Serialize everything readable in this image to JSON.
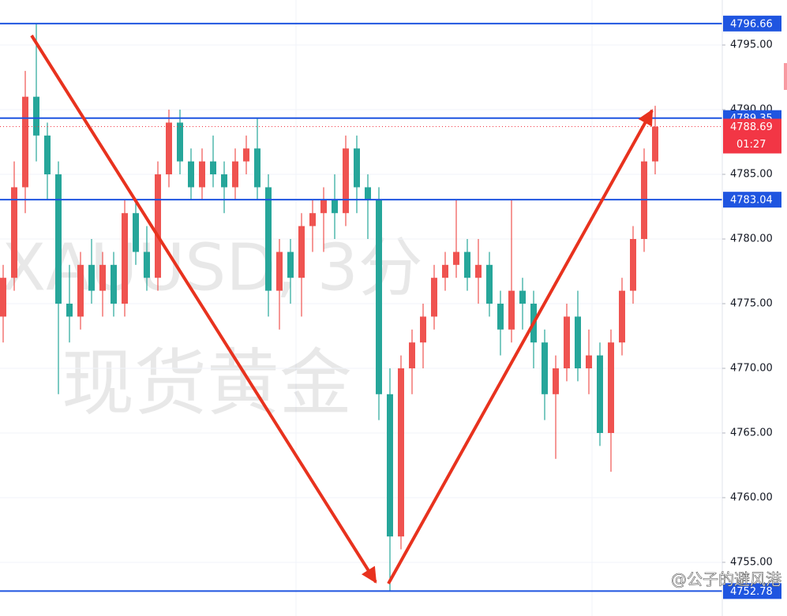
{
  "chart_data": {
    "type": "candlestick",
    "title": "XAUUSD, 3分",
    "subtitle": "现货黄金",
    "watermark": "@公子的避风港",
    "open": [
      4774,
      4777,
      4784,
      4791,
      4788,
      4785,
      4775,
      4774,
      4778,
      4776,
      4778,
      4775,
      4782,
      4779,
      4777,
      4785,
      4789,
      4786,
      4784,
      4786,
      4785,
      4784,
      4786,
      4787,
      4784,
      4776,
      4779,
      4777,
      4781,
      4782,
      4783,
      4782,
      4787,
      4784,
      4783,
      4768,
      4757,
      4770,
      4772,
      4774,
      4777,
      4778,
      4779,
      4777,
      4778,
      4775,
      4773,
      4776,
      4775,
      4772,
      4768,
      4770,
      4774,
      4770,
      4771,
      4765,
      4772,
      4776,
      4780,
      4786
    ],
    "high": [
      4778,
      4786,
      4793,
      4796.66,
      4789,
      4786,
      4778,
      4779,
      4780,
      4779,
      4779,
      4783,
      4783,
      4781,
      4786,
      4790,
      4790,
      4787,
      4787,
      4788,
      4786,
      4787,
      4788,
      4789.35,
      4785,
      4780,
      4780,
      4782,
      4783,
      4784,
      4785,
      4788,
      4788,
      4785,
      4784,
      4770,
      4771,
      4773,
      4775,
      4778,
      4779,
      4783,
      4780,
      4780,
      4779,
      4776,
      4783,
      4777,
      4776,
      4773,
      4771,
      4775,
      4776,
      4773,
      4772,
      4773,
      4777,
      4781,
      4787,
      4790.3
    ],
    "low": [
      4772,
      4776,
      4782,
      4786,
      4783,
      4768,
      4772,
      4773,
      4775,
      4774,
      4774,
      4774,
      4778,
      4776,
      4776,
      4784,
      4785,
      4783,
      4783,
      4784,
      4782,
      4783,
      4785,
      4783,
      4774,
      4773,
      4775,
      4774,
      4779,
      4779,
      4780,
      4781,
      4782,
      4780,
      4766,
      4752.78,
      4756,
      4768,
      4770,
      4773,
      4776,
      4777,
      4776,
      4775,
      4774,
      4771,
      4772,
      4773,
      4770,
      4766,
      4763,
      4769,
      4769,
      4768,
      4764,
      4762,
      4771,
      4775,
      4779,
      4785
    ],
    "close": [
      4777,
      4784,
      4791,
      4788,
      4785,
      4775,
      4774,
      4778,
      4776,
      4778,
      4775,
      4782,
      4779,
      4777,
      4785,
      4789,
      4786,
      4784,
      4786,
      4785,
      4784,
      4786,
      4787,
      4784,
      4776,
      4779,
      4777,
      4781,
      4782,
      4783,
      4782,
      4787,
      4784,
      4783,
      4768,
      4757,
      4770,
      4772,
      4774,
      4777,
      4778,
      4779,
      4777,
      4778,
      4775,
      4773,
      4776,
      4775,
      4772,
      4768,
      4770,
      4774,
      4770,
      4771,
      4765,
      4772,
      4776,
      4780,
      4786,
      4788.69
    ],
    "up_color": "#ef5350",
    "down_color": "#26a69a",
    "ylim": [
      4750.85,
      4798.48
    ],
    "yticks": [
      {
        "value": 4755,
        "label": "4755.00"
      },
      {
        "value": 4760,
        "label": "4760.00"
      },
      {
        "value": 4765,
        "label": "4765.00"
      },
      {
        "value": 4770,
        "label": "4770.00"
      },
      {
        "value": 4775,
        "label": "4775.00"
      },
      {
        "value": 4780,
        "label": "4780.00"
      },
      {
        "value": 4785,
        "label": "4785.00"
      },
      {
        "value": 4790,
        "label": "4790.00"
      },
      {
        "value": 4795,
        "label": "4795.00"
      }
    ],
    "grid": true,
    "levels": [
      4796.66,
      4789.35,
      4783.04,
      4752.78
    ],
    "level_color": "#1f55e0",
    "current_price": 4788.69,
    "countdown": "01:27",
    "current_color": "#f23645"
  }
}
